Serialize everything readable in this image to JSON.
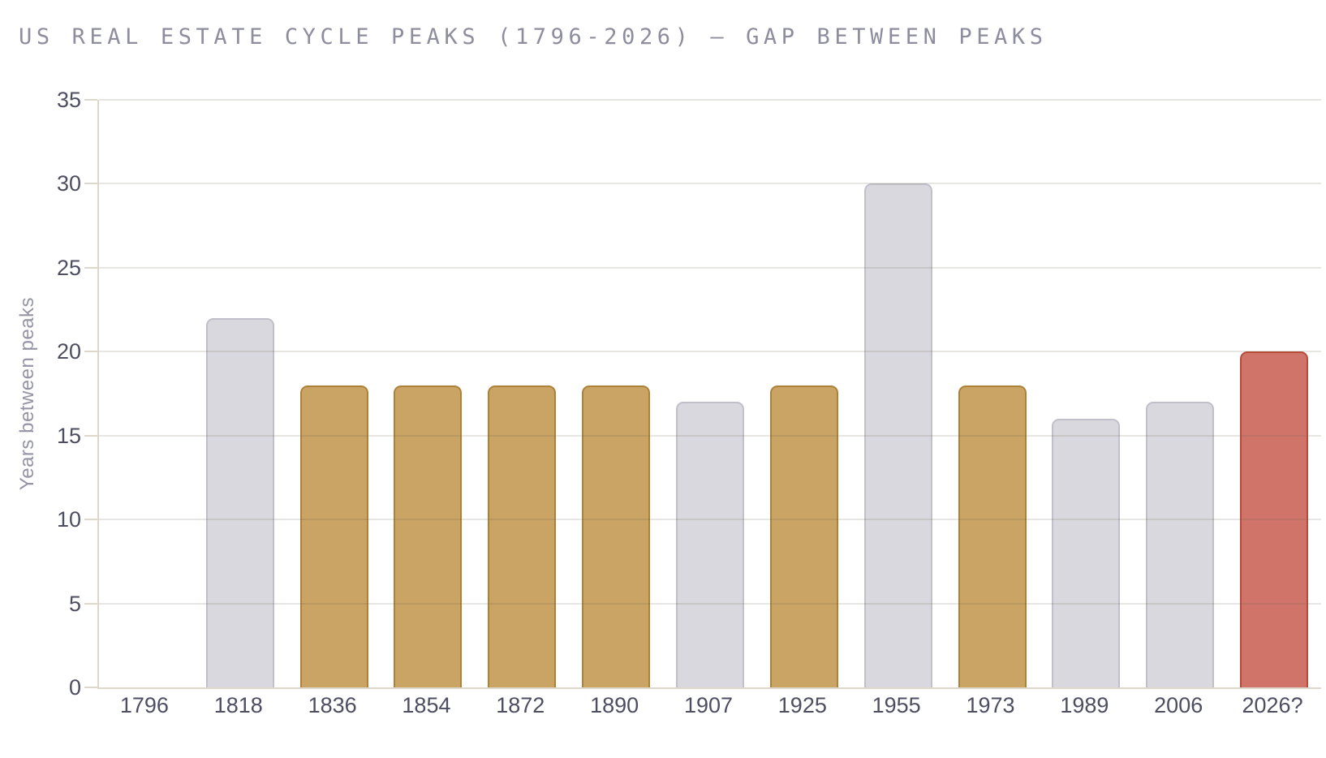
{
  "header": {
    "title": "US REAL ESTATE CYCLE PEAKS (1796-2026) — GAP BETWEEN PEAKS"
  },
  "chart_data": {
    "type": "bar",
    "title": "US REAL ESTATE CYCLE PEAKS (1796-2026) — GAP BETWEEN PEAKS",
    "xlabel": "",
    "ylabel": "Years between peaks",
    "ylim": [
      0,
      35
    ],
    "yticks": [
      0,
      5,
      10,
      15,
      20,
      25,
      30,
      35
    ],
    "grid": "horizontal",
    "legend": "none",
    "categories": [
      "1796",
      "1818",
      "1836",
      "1854",
      "1872",
      "1890",
      "1907",
      "1925",
      "1955",
      "1973",
      "1989",
      "2006",
      "2026?"
    ],
    "values": [
      0,
      22,
      18,
      18,
      18,
      18,
      17,
      18,
      30,
      18,
      16,
      17,
      20
    ],
    "bar_colors": [
      "none",
      "gray",
      "gold",
      "gold",
      "gold",
      "gold",
      "gray",
      "gold",
      "gray",
      "gold",
      "gray",
      "gray",
      "red"
    ],
    "palette": {
      "gray": {
        "fill": "#d9d8de",
        "border": "#c0bfca"
      },
      "gold": {
        "fill": "#c9a464",
        "border": "#ad8138"
      },
      "red": {
        "fill": "#d0746a",
        "border": "#b94a3a"
      }
    },
    "colors_meta": {
      "grid": "#e6e4da",
      "axis": "#ddd8cb",
      "tick_text": "#4e4e63",
      "title_text": "#8d8d9e",
      "ylabel_text": "#9494a6"
    }
  }
}
